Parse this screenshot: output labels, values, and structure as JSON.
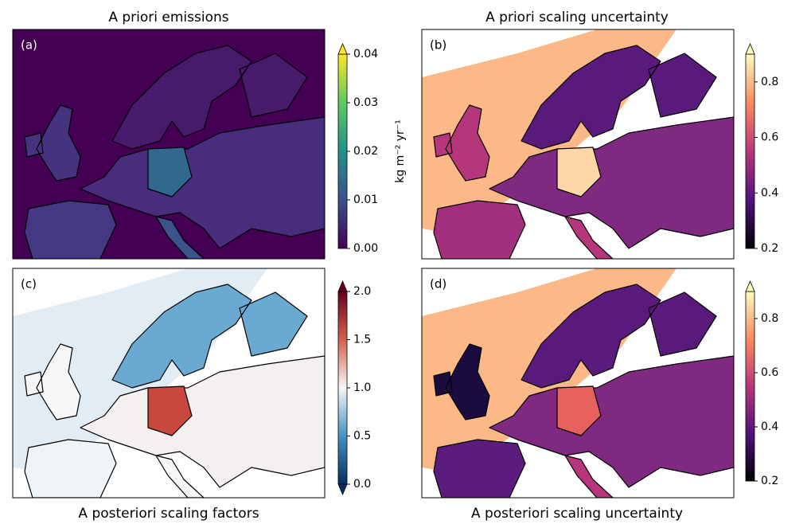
{
  "chart_data": {
    "type": "map",
    "colorbar_label": "kg m⁻² yr⁻¹",
    "panels": [
      {
        "title": "A priori emissions",
        "label": "(a)",
        "extend": "max",
        "colors": [
          "#440154",
          "#3b528b",
          "#21918c",
          "#5ec962",
          "#fde725"
        ],
        "lim": [
          0,
          0.04
        ],
        "ticks": [
          {
            "value": 0,
            "label": "0.00"
          },
          0.01,
          0.02,
          0.03,
          0.04
        ]
      },
      {
        "title": "A priori scaling uncertainty",
        "label": "(b)",
        "extend": "max",
        "colors": [
          "#000004",
          "#51127c",
          "#b73779",
          "#fc8961",
          "#fcfdbf"
        ],
        "lim": [
          0.2,
          0.9
        ],
        "ticks": [
          0.2,
          0.4,
          0.6,
          0.8
        ]
      },
      {
        "title": "A posteriori scaling factors",
        "label": "(c)",
        "extend": "both",
        "colors": [
          "#053061",
          "#4393c3",
          "#f7f7f7",
          "#d6604d",
          "#67001f"
        ],
        "lim": [
          0,
          2
        ],
        "ticks": [
          {
            "value": 0,
            "label": "0.0"
          },
          0.5,
          {
            "value": 1,
            "label": "1.0"
          },
          1.5,
          {
            "value": 2,
            "label": "2.0"
          }
        ]
      },
      {
        "title": "A posteriori scaling uncertainty",
        "label": "(d)",
        "extend": "max",
        "colors": [
          "#000004",
          "#51127c",
          "#b73779",
          "#fc8961",
          "#fcfdbf"
        ],
        "lim": [
          0.2,
          0.9
        ],
        "ticks": [
          0.2,
          0.4,
          0.6,
          0.8
        ]
      }
    ]
  }
}
